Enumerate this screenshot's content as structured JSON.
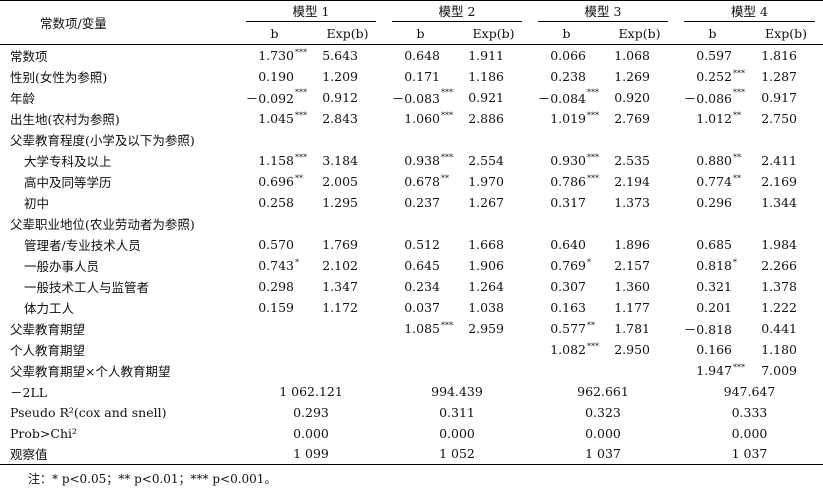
{
  "header": {
    "stub": "常数项/变量",
    "models": [
      "模型 1",
      "模型 2",
      "模型 3",
      "模型 4"
    ],
    "col_b": "b",
    "col_exp": "Exp(b)"
  },
  "rows": [
    {
      "label": "常数项",
      "indent": false,
      "cells": [
        [
          "1.730",
          "***",
          "5.643"
        ],
        [
          "0.648",
          "",
          "1.911"
        ],
        [
          "0.066",
          "",
          "1.068"
        ],
        [
          "0.597",
          "",
          "1.816"
        ]
      ]
    },
    {
      "label": "性别(女性为参照)",
      "indent": false,
      "cells": [
        [
          "0.190",
          "",
          "1.209"
        ],
        [
          "0.171",
          "",
          "1.186"
        ],
        [
          "0.238",
          "",
          "1.269"
        ],
        [
          "0.252",
          "***",
          "1.287"
        ]
      ]
    },
    {
      "label": "年龄",
      "indent": false,
      "cells": [
        [
          "－0.092",
          "***",
          "0.912"
        ],
        [
          "－0.083",
          "***",
          "0.921"
        ],
        [
          "－0.084",
          "***",
          "0.920"
        ],
        [
          "－0.086",
          "***",
          "0.917"
        ]
      ]
    },
    {
      "label": "出生地(农村为参照)",
      "indent": false,
      "cells": [
        [
          "1.045",
          "***",
          "2.843"
        ],
        [
          "1.060",
          "***",
          "2.886"
        ],
        [
          "1.019",
          "***",
          "2.769"
        ],
        [
          "1.012",
          "**",
          "2.750"
        ]
      ]
    },
    {
      "label": "父辈教育程度(小学及以下为参照)",
      "indent": false,
      "cells": []
    },
    {
      "label": "大学专科及以上",
      "indent": true,
      "cells": [
        [
          "1.158",
          "***",
          "3.184"
        ],
        [
          "0.938",
          "***",
          "2.554"
        ],
        [
          "0.930",
          "***",
          "2.535"
        ],
        [
          "0.880",
          "**",
          "2.411"
        ]
      ]
    },
    {
      "label": "高中及同等学历",
      "indent": true,
      "cells": [
        [
          "0.696",
          "**",
          "2.005"
        ],
        [
          "0.678",
          "**",
          "1.970"
        ],
        [
          "0.786",
          "***",
          "2.194"
        ],
        [
          "0.774",
          "**",
          "2.169"
        ]
      ]
    },
    {
      "label": "初中",
      "indent": true,
      "cells": [
        [
          "0.258",
          "",
          "1.295"
        ],
        [
          "0.237",
          "",
          "1.267"
        ],
        [
          "0.317",
          "",
          "1.373"
        ],
        [
          "0.296",
          "",
          "1.344"
        ]
      ]
    },
    {
      "label": "父辈职业地位(农业劳动者为参照)",
      "indent": false,
      "cells": []
    },
    {
      "label": "管理者/专业技术人员",
      "indent": true,
      "cells": [
        [
          "0.570",
          "",
          "1.769"
        ],
        [
          "0.512",
          "",
          "1.668"
        ],
        [
          "0.640",
          "",
          "1.896"
        ],
        [
          "0.685",
          "",
          "1.984"
        ]
      ]
    },
    {
      "label": "一般办事人员",
      "indent": true,
      "cells": [
        [
          "0.743",
          "*",
          "2.102"
        ],
        [
          "0.645",
          "",
          "1.906"
        ],
        [
          "0.769",
          "*",
          "2.157"
        ],
        [
          "0.818",
          "*",
          "2.266"
        ]
      ]
    },
    {
      "label": "一般技术工人与监管者",
      "indent": true,
      "cells": [
        [
          "0.298",
          "",
          "1.347"
        ],
        [
          "0.234",
          "",
          "1.264"
        ],
        [
          "0.307",
          "",
          "1.360"
        ],
        [
          "0.321",
          "",
          "1.378"
        ]
      ]
    },
    {
      "label": "体力工人",
      "indent": true,
      "cells": [
        [
          "0.159",
          "",
          "1.172"
        ],
        [
          "0.037",
          "",
          "1.038"
        ],
        [
          "0.163",
          "",
          "1.177"
        ],
        [
          "0.201",
          "",
          "1.222"
        ]
      ]
    },
    {
      "label": "父辈教育期望",
      "indent": false,
      "cells": [
        [
          "",
          "",
          ""
        ],
        [
          "1.085",
          "***",
          "2.959"
        ],
        [
          "0.577",
          "**",
          "1.781"
        ],
        [
          "－0.818",
          "",
          "0.441"
        ]
      ]
    },
    {
      "label": "个人教育期望",
      "indent": false,
      "cells": [
        [
          "",
          "",
          ""
        ],
        [
          "",
          "",
          ""
        ],
        [
          "1.082",
          "***",
          "2.950"
        ],
        [
          "0.166",
          "",
          "1.180"
        ]
      ]
    },
    {
      "label": "父辈教育期望×个人教育期望",
      "indent": false,
      "cells": [
        [
          "",
          "",
          ""
        ],
        [
          "",
          "",
          ""
        ],
        [
          "",
          "",
          ""
        ],
        [
          "1.947",
          "***",
          "7.009"
        ]
      ]
    }
  ],
  "stats": [
    {
      "label": "－2LL",
      "values": [
        "1 062.121",
        "994.439",
        "962.661",
        "947.647"
      ]
    },
    {
      "label": "Pseudo R²(cox and snell)",
      "values": [
        "0.293",
        "0.311",
        "0.323",
        "0.333"
      ]
    },
    {
      "label": "Prob>Chi²",
      "values": [
        "0.000",
        "0.000",
        "0.000",
        "0.000"
      ]
    },
    {
      "label": "观察值",
      "values": [
        "1 099",
        "1 052",
        "1 037",
        "1 037"
      ]
    }
  ],
  "note": "注：* p<0.05；** p<0.01；*** p<0.001。"
}
